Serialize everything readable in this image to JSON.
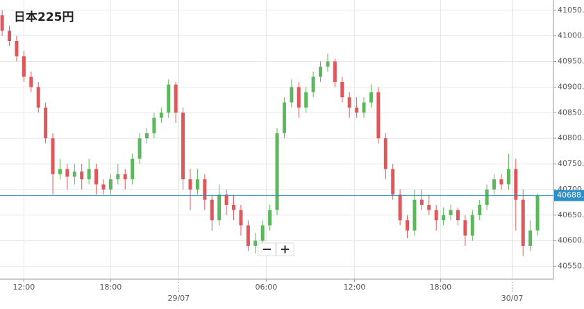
{
  "chart_data": {
    "type": "candlestick",
    "title": "日本225円",
    "up_color": "#5cb85c",
    "down_color": "#e0575b",
    "candles": [
      [
        41040,
        41050,
        41000,
        41010
      ],
      [
        41010,
        41020,
        40980,
        40990
      ],
      [
        40990,
        41000,
        40950,
        40960
      ],
      [
        40960,
        40970,
        40910,
        40920
      ],
      [
        40920,
        40930,
        40890,
        40900
      ],
      [
        40900,
        40910,
        40850,
        40860
      ],
      [
        40860,
        40870,
        40790,
        40800
      ],
      [
        40800,
        40810,
        40690,
        40730
      ],
      [
        40730,
        40760,
        40720,
        40740
      ],
      [
        40740,
        40750,
        40700,
        40725
      ],
      [
        40725,
        40750,
        40710,
        40735
      ],
      [
        40735,
        40750,
        40700,
        40720
      ],
      [
        40720,
        40760,
        40710,
        40740
      ],
      [
        40740,
        40750,
        40690,
        40710
      ],
      [
        40710,
        40720,
        40690,
        40700
      ],
      [
        40700,
        40730,
        40690,
        40720
      ],
      [
        40720,
        40750,
        40710,
        40730
      ],
      [
        40730,
        40740,
        40700,
        40720
      ],
      [
        40720,
        40770,
        40710,
        40760
      ],
      [
        40760,
        40810,
        40750,
        40800
      ],
      [
        40800,
        40820,
        40790,
        40810
      ],
      [
        40810,
        40850,
        40800,
        40840
      ],
      [
        40840,
        40860,
        40830,
        40850
      ],
      [
        40850,
        40915,
        40840,
        40905
      ],
      [
        40905,
        40910,
        40830,
        40850
      ],
      [
        40850,
        40860,
        40700,
        40720
      ],
      [
        40720,
        40740,
        40660,
        40700
      ],
      [
        40700,
        40740,
        40690,
        40720
      ],
      [
        40720,
        40730,
        40660,
        40680
      ],
      [
        40680,
        40690,
        40620,
        40640
      ],
      [
        40640,
        40710,
        40630,
        40690
      ],
      [
        40690,
        40700,
        40650,
        40670
      ],
      [
        40670,
        40690,
        40640,
        40660
      ],
      [
        40660,
        40670,
        40610,
        40630
      ],
      [
        40630,
        40640,
        40580,
        40590
      ],
      [
        40590,
        40615,
        40575,
        40600
      ],
      [
        40600,
        40640,
        40590,
        40630
      ],
      [
        40630,
        40670,
        40620,
        40660
      ],
      [
        40660,
        40820,
        40650,
        40810
      ],
      [
        40810,
        40880,
        40800,
        40870
      ],
      [
        40870,
        40915,
        40860,
        40900
      ],
      [
        40900,
        40910,
        40840,
        40860
      ],
      [
        40860,
        40900,
        40850,
        40890
      ],
      [
        40890,
        40930,
        40880,
        40920
      ],
      [
        40920,
        40950,
        40910,
        40940
      ],
      [
        40940,
        40965,
        40930,
        40950
      ],
      [
        40950,
        40955,
        40900,
        40910
      ],
      [
        40910,
        40920,
        40870,
        40880
      ],
      [
        40880,
        40890,
        40840,
        40860
      ],
      [
        40860,
        40880,
        40840,
        40850
      ],
      [
        40850,
        40880,
        40840,
        40870
      ],
      [
        40870,
        40905,
        40860,
        40890
      ],
      [
        40890,
        40900,
        40790,
        40800
      ],
      [
        40800,
        40810,
        40720,
        40740
      ],
      [
        40740,
        40750,
        40680,
        40690
      ],
      [
        40690,
        40700,
        40630,
        40640
      ],
      [
        40640,
        40650,
        40605,
        40620
      ],
      [
        40620,
        40700,
        40610,
        40680
      ],
      [
        40680,
        40700,
        40660,
        40670
      ],
      [
        40670,
        40690,
        40650,
        40660
      ],
      [
        40660,
        40670,
        40620,
        40640
      ],
      [
        40640,
        40665,
        40630,
        40650
      ],
      [
        40650,
        40670,
        40640,
        40660
      ],
      [
        40660,
        40665,
        40630,
        40640
      ],
      [
        40640,
        40650,
        40590,
        40610
      ],
      [
        40610,
        40660,
        40600,
        40650
      ],
      [
        40650,
        40680,
        40640,
        40670
      ],
      [
        40670,
        40710,
        40660,
        40700
      ],
      [
        40700,
        40730,
        40690,
        40720
      ],
      [
        40720,
        40730,
        40700,
        40710
      ],
      [
        40710,
        40770,
        40700,
        40740
      ],
      [
        40740,
        40760,
        40620,
        40680
      ],
      [
        40680,
        40700,
        40570,
        40590
      ],
      [
        40590,
        40640,
        40580,
        40620
      ],
      [
        40620,
        40692,
        40610,
        40688
      ]
    ],
    "last_price": 40688.2,
    "last_price_color": "#2a8fc7",
    "ylim": [
      40525,
      41070
    ],
    "yticks": [
      {
        "value": 40550,
        "label": "40550.0"
      },
      {
        "value": 40600,
        "label": "40600.0"
      },
      {
        "value": 40650,
        "label": "40650.0"
      },
      {
        "value": 40700,
        "label": "40700.0"
      },
      {
        "value": 40750,
        "label": "40750.0"
      },
      {
        "value": 40800,
        "label": "40800.0"
      },
      {
        "value": 40850,
        "label": "40850.0"
      },
      {
        "value": 40900,
        "label": "40900.0"
      },
      {
        "value": 40950,
        "label": "40950.0"
      },
      {
        "value": 41000,
        "label": "41000.0"
      },
      {
        "value": 41050,
        "label": "41050.0"
      }
    ],
    "xlim": [
      -0.3,
      76.2
    ],
    "xticks": [
      {
        "value": 3,
        "label": "12:00"
      },
      {
        "value": 15,
        "label": "18:00"
      },
      {
        "value": 36.5,
        "label": "06:00"
      },
      {
        "value": 48.7,
        "label": "12:00"
      },
      {
        "value": 60.6,
        "label": "18:00"
      }
    ],
    "date_ticks": [
      {
        "value": 24.4,
        "label": "29/07"
      },
      {
        "value": 70.5,
        "label": "30/07"
      }
    ],
    "grid": true
  }
}
